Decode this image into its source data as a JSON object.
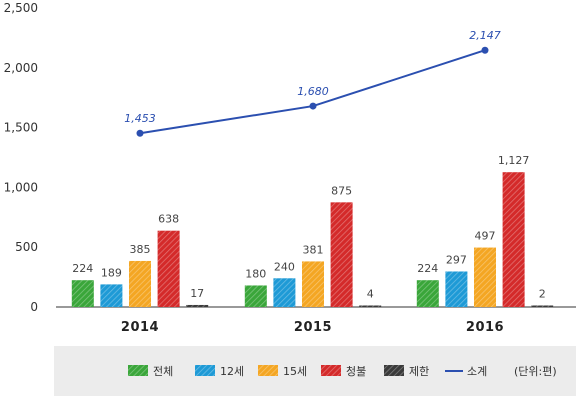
{
  "chart_data": {
    "type": "bar",
    "categories": [
      "2014",
      "2015",
      "2016"
    ],
    "yticks": [
      "0",
      "500",
      "1,000",
      "1,500",
      "2,000",
      "2,500"
    ],
    "ylim": [
      0,
      2500
    ],
    "series": [
      {
        "name": "전체",
        "color": "#3aa63a",
        "values": [
          224,
          180,
          224
        ],
        "labels": [
          "224",
          "180",
          "224"
        ]
      },
      {
        "name": "12세",
        "color": "#1e9ad6",
        "values": [
          189,
          240,
          297
        ],
        "labels": [
          "189",
          "240",
          "297"
        ]
      },
      {
        "name": "15세",
        "color": "#f4a623",
        "values": [
          385,
          381,
          497
        ],
        "labels": [
          "385",
          "381",
          "497"
        ]
      },
      {
        "name": "청불",
        "color": "#d42a2a",
        "values": [
          638,
          875,
          1127
        ],
        "labels": [
          "638",
          "875",
          "1,127"
        ]
      },
      {
        "name": "제한",
        "color": "#3a3a3a",
        "values": [
          17,
          4,
          2
        ],
        "labels": [
          "17",
          "4",
          "2"
        ]
      }
    ],
    "line": {
      "name": "소계",
      "color": "#2b4fb0",
      "values": [
        1453,
        1680,
        2147
      ],
      "labels": [
        "1,453",
        "1,680",
        "2,147"
      ]
    },
    "unit_note": "(단위:편)",
    "legend_position": "bottom",
    "grid": false
  }
}
